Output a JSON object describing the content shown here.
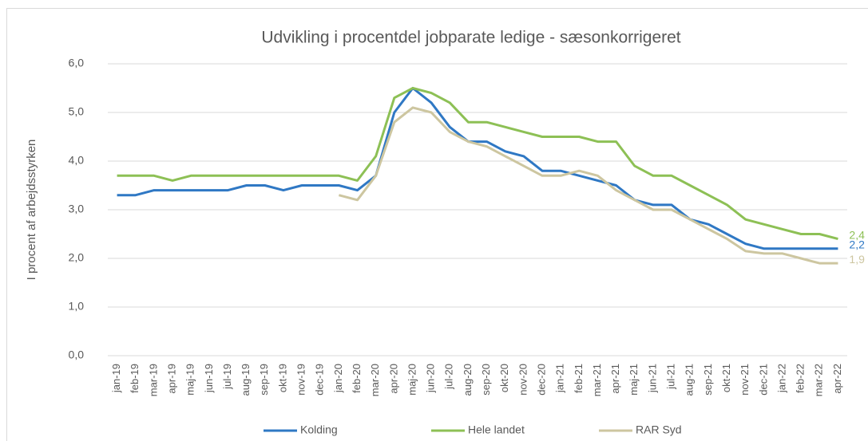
{
  "chart_data": {
    "type": "line",
    "title": "Udvikling i procentdel jobparate ledige - sæsonkorrigeret",
    "y_label": "I procent af arbejdsstyrken",
    "categories": [
      "jan-19",
      "feb-19",
      "mar-19",
      "apr-19",
      "maj-19",
      "jun-19",
      "jul-19",
      "aug-19",
      "sep-19",
      "okt-19",
      "nov-19",
      "dec-19",
      "jan-20",
      "feb-20",
      "mar-20",
      "apr-20",
      "maj-20",
      "jun-20",
      "jul-20",
      "aug-20",
      "sep-20",
      "okt-20",
      "nov-20",
      "dec-20",
      "jan-21",
      "feb-21",
      "mar-21",
      "apr-21",
      "maj-21",
      "jun-21",
      "jul-21",
      "aug-21",
      "sep-21",
      "okt-21",
      "nov-21",
      "dec-21",
      "jan-22",
      "feb-22",
      "mar-22",
      "apr-22"
    ],
    "series": [
      {
        "name": "Kolding",
        "color": "#2f78c4",
        "values": [
          3.3,
          3.3,
          3.4,
          3.4,
          3.4,
          3.4,
          3.4,
          3.5,
          3.5,
          3.4,
          3.5,
          3.5,
          3.5,
          3.4,
          3.7,
          5.0,
          5.5,
          5.2,
          4.7,
          4.4,
          4.4,
          4.2,
          4.1,
          3.8,
          3.8,
          3.7,
          3.6,
          3.5,
          3.2,
          3.1,
          3.1,
          2.8,
          2.7,
          2.5,
          2.3,
          2.2,
          2.2,
          2.2,
          2.2,
          2.2
        ],
        "value_labels": [
          null,
          null,
          null,
          null,
          null,
          null,
          null,
          null,
          null,
          null,
          null,
          null,
          null,
          null,
          null,
          null,
          null,
          null,
          null,
          null,
          null,
          null,
          null,
          null,
          null,
          null,
          null,
          null,
          null,
          null,
          null,
          null,
          null,
          null,
          null,
          null,
          null,
          null,
          null,
          "2,2"
        ]
      },
      {
        "name": "Hele landet",
        "color": "#8dc055",
        "values": [
          3.7,
          3.7,
          3.7,
          3.6,
          3.7,
          3.7,
          3.7,
          3.7,
          3.7,
          3.7,
          3.7,
          3.7,
          3.7,
          3.6,
          4.1,
          5.3,
          5.5,
          5.4,
          5.2,
          4.8,
          4.8,
          4.7,
          4.6,
          4.5,
          4.5,
          4.5,
          4.4,
          4.4,
          3.9,
          3.7,
          3.7,
          3.5,
          3.3,
          3.1,
          2.8,
          2.7,
          2.6,
          2.5,
          2.5,
          2.4
        ],
        "value_labels": [
          null,
          null,
          null,
          null,
          null,
          null,
          null,
          null,
          null,
          null,
          null,
          null,
          null,
          null,
          null,
          null,
          null,
          null,
          null,
          null,
          null,
          null,
          null,
          null,
          null,
          null,
          null,
          null,
          null,
          null,
          null,
          null,
          null,
          null,
          null,
          null,
          null,
          null,
          null,
          "2,4"
        ]
      },
      {
        "name": "RAR Syd",
        "color": "#cdc6a0",
        "values": [
          null,
          null,
          null,
          null,
          null,
          null,
          null,
          null,
          null,
          null,
          null,
          null,
          3.3,
          3.2,
          3.7,
          4.8,
          5.1,
          5.0,
          4.6,
          4.4,
          4.3,
          4.1,
          3.9,
          3.7,
          3.7,
          3.8,
          3.7,
          3.4,
          3.2,
          3.0,
          3.0,
          2.8,
          2.6,
          2.4,
          2.15,
          2.1,
          2.1,
          2.0,
          1.9,
          1.9
        ],
        "value_labels": [
          null,
          null,
          null,
          null,
          null,
          null,
          null,
          null,
          null,
          null,
          null,
          null,
          null,
          null,
          null,
          null,
          null,
          null,
          null,
          null,
          null,
          null,
          null,
          null,
          null,
          null,
          null,
          null,
          null,
          null,
          null,
          null,
          null,
          null,
          null,
          null,
          null,
          null,
          null,
          "1,9"
        ]
      }
    ],
    "ylim": [
      0,
      6
    ],
    "yticks": [
      {
        "value": 0,
        "label": "0,0"
      },
      {
        "value": 1,
        "label": "1,0"
      },
      {
        "value": 2,
        "label": "2,0"
      },
      {
        "value": 3,
        "label": "3,0"
      },
      {
        "value": 4,
        "label": "4,0"
      },
      {
        "value": 5,
        "label": "5,0"
      },
      {
        "value": 6,
        "label": "6,0"
      }
    ],
    "grid": true,
    "legend": "bottom"
  }
}
